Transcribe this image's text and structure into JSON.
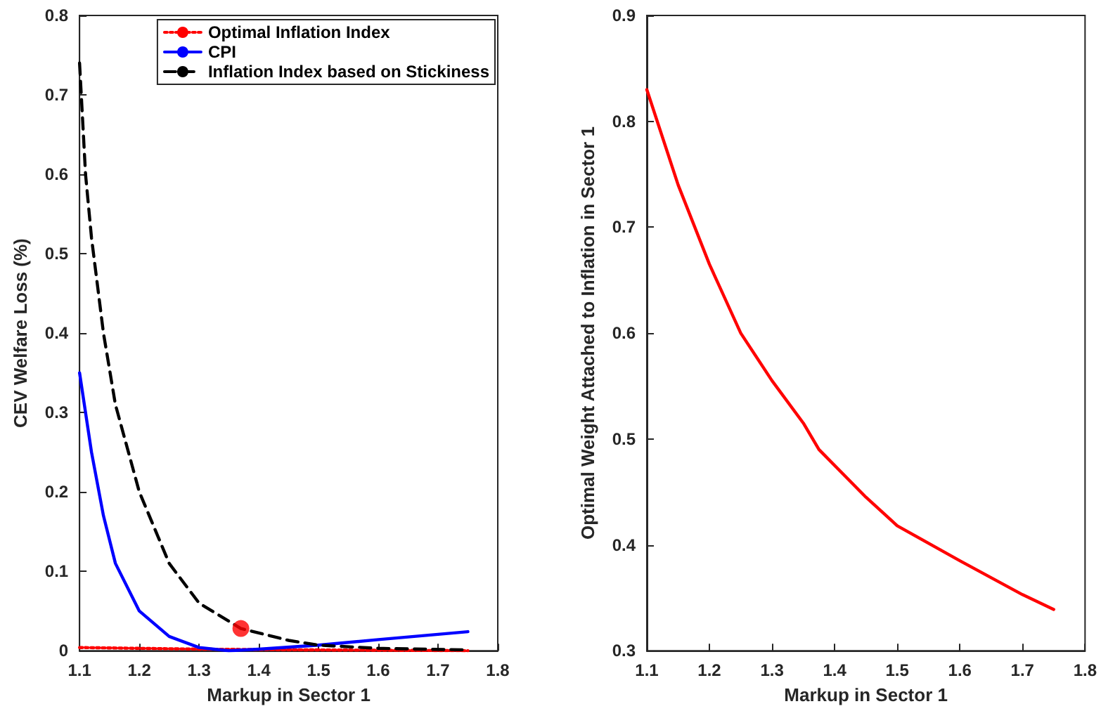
{
  "chart_data": [
    {
      "type": "line",
      "xlabel": "Markup in Sector 1",
      "ylabel": "CEV Welfare Loss (%)",
      "xlim": [
        1.1,
        1.8
      ],
      "xticks": [
        1.1,
        1.2,
        1.3,
        1.4,
        1.5,
        1.6,
        1.7,
        1.8
      ],
      "ylim": [
        0,
        0.8
      ],
      "yticks": [
        0,
        0.1,
        0.2,
        0.3,
        0.4,
        0.5,
        0.6,
        0.7,
        0.8
      ],
      "grid": false,
      "legend": "top right",
      "marker": "none",
      "series": [
        {
          "name": "Optimal Inflation Index",
          "color": "#ff0000",
          "line_style": "dotted",
          "x": [
            1.1,
            1.3,
            1.5,
            1.75
          ],
          "values": [
            0.004,
            0.002,
            0.001,
            0
          ]
        },
        {
          "name": "CPI",
          "color": "#0000ff",
          "line_style": "solid",
          "x": [
            1.1,
            1.12,
            1.14,
            1.16,
            1.2,
            1.25,
            1.3,
            1.35,
            1.4,
            1.5,
            1.6,
            1.75
          ],
          "values": [
            0.35,
            0.25,
            0.17,
            0.11,
            0.05,
            0.018,
            0.004,
            0,
            0.002,
            0.007,
            0.014,
            0.024
          ]
        },
        {
          "name": "Inflation Index based on Stickiness",
          "color": "#000000",
          "line_style": "dashed",
          "x": [
            1.1,
            1.11,
            1.12,
            1.14,
            1.16,
            1.2,
            1.25,
            1.3,
            1.37,
            1.45,
            1.5,
            1.6,
            1.75
          ],
          "values": [
            0.74,
            0.6,
            0.52,
            0.4,
            0.31,
            0.2,
            0.11,
            0.06,
            0.028,
            0.013,
            0.007,
            0.003,
            0.001
          ]
        },
        {
          "type": "scatter",
          "marker": "circle",
          "color": "#ff0000",
          "x": [
            1.37
          ],
          "values": [
            0.028
          ]
        }
      ]
    },
    {
      "type": "line",
      "xlabel": "Markup in Sector 1",
      "ylabel": "Optimal Weight Attached to Inflation in Sector 1",
      "xlim": [
        1.1,
        1.8
      ],
      "xticks": [
        1.1,
        1.2,
        1.3,
        1.4,
        1.5,
        1.6,
        1.7,
        1.8
      ],
      "ylim": [
        0.3,
        0.9
      ],
      "yticks": [
        0.3,
        0.4,
        0.5,
        0.6,
        0.7,
        0.8,
        0.9
      ],
      "grid": false,
      "legend": false,
      "marker": "none",
      "series": [
        {
          "color": "#ff0000",
          "line_style": "solid",
          "x": [
            1.1,
            1.15,
            1.2,
            1.25,
            1.3,
            1.35,
            1.375,
            1.45,
            1.5,
            1.6,
            1.7,
            1.75
          ],
          "values": [
            0.83,
            0.74,
            0.665,
            0.6,
            0.555,
            0.515,
            0.49,
            0.445,
            0.418,
            0.385,
            0.353,
            0.339
          ]
        }
      ]
    }
  ]
}
